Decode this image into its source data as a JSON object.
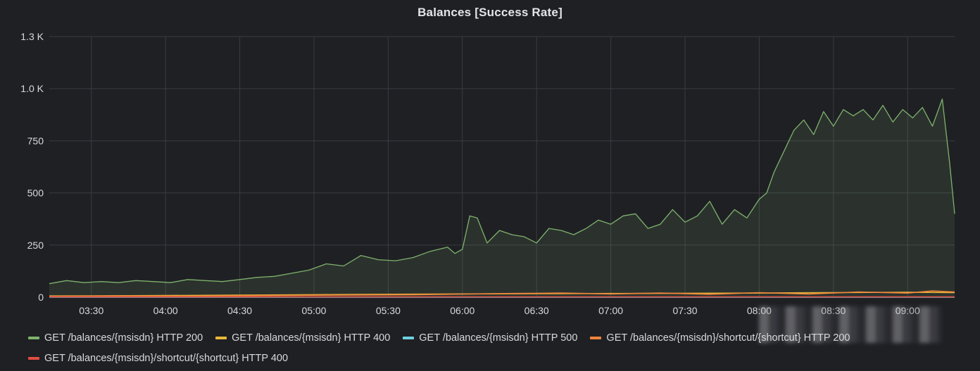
{
  "panel": {
    "title": "Balances [Success Rate]"
  },
  "colors": {
    "background": "#1f2024",
    "grid": "#3a3b40",
    "text": "#d8d9da"
  },
  "legend": {
    "items": [
      {
        "label": "GET /balances/{msisdn} HTTP 200",
        "color": "#7eb26d",
        "row": 0
      },
      {
        "label": "GET /balances/{msisdn} HTTP 400",
        "color": "#eab839",
        "row": 0
      },
      {
        "label": "GET /balances/{msisdn} HTTP 500",
        "color": "#6ed0e0",
        "row": 0
      },
      {
        "label": "GET /balances/{msisdn}/shortcut/{shortcut} HTTP 200",
        "color": "#ef843c",
        "row": 0
      },
      {
        "label": "GET /balances/{msisdn}/shortcut/{shortcut} HTTP 400",
        "color": "#e24d42",
        "row": 1
      }
    ]
  },
  "chart_data": {
    "type": "area",
    "title": "Balances [Success Rate]",
    "xlabel": "",
    "ylabel": "",
    "x_ticks": [
      "03:30",
      "04:00",
      "04:30",
      "05:00",
      "05:30",
      "06:00",
      "06:30",
      "07:00",
      "07:30",
      "08:00",
      "08:30",
      "09:00"
    ],
    "y_ticks": [
      "0",
      "250",
      "500",
      "750",
      "1.0 K",
      "1.3 K"
    ],
    "ylim": [
      0,
      1250
    ],
    "xlim": [
      "03:13",
      "09:19"
    ],
    "grid": true,
    "legend_position": "bottom",
    "series": [
      {
        "name": "GET /balances/{msisdn} HTTP 200",
        "color": "#7eb26d",
        "fill": true,
        "x": [
          "03:13",
          "03:20",
          "03:27",
          "03:34",
          "03:41",
          "03:48",
          "03:55",
          "04:02",
          "04:09",
          "04:16",
          "04:23",
          "04:30",
          "04:37",
          "04:44",
          "04:51",
          "04:58",
          "05:05",
          "05:12",
          "05:19",
          "05:26",
          "05:33",
          "05:40",
          "05:47",
          "05:54",
          "05:57",
          "06:00",
          "06:03",
          "06:06",
          "06:10",
          "06:15",
          "06:20",
          "06:25",
          "06:30",
          "06:35",
          "06:40",
          "06:45",
          "06:50",
          "06:55",
          "07:00",
          "07:05",
          "07:10",
          "07:15",
          "07:20",
          "07:25",
          "07:30",
          "07:35",
          "07:40",
          "07:45",
          "07:50",
          "07:55",
          "08:00",
          "08:03",
          "08:06",
          "08:10",
          "08:14",
          "08:18",
          "08:22",
          "08:26",
          "08:30",
          "08:34",
          "08:38",
          "08:42",
          "08:46",
          "08:50",
          "08:54",
          "08:58",
          "09:02",
          "09:06",
          "09:10",
          "09:14",
          "09:17",
          "09:19"
        ],
        "values": [
          65,
          80,
          70,
          75,
          70,
          80,
          75,
          70,
          85,
          80,
          75,
          85,
          95,
          100,
          115,
          130,
          160,
          150,
          200,
          180,
          175,
          190,
          220,
          240,
          210,
          230,
          390,
          380,
          260,
          320,
          300,
          290,
          260,
          330,
          320,
          300,
          330,
          370,
          350,
          390,
          400,
          330,
          350,
          420,
          360,
          390,
          460,
          350,
          420,
          380,
          470,
          500,
          600,
          700,
          800,
          850,
          780,
          890,
          820,
          900,
          870,
          900,
          850,
          920,
          840,
          900,
          860,
          910,
          820,
          950,
          640,
          400
        ]
      },
      {
        "name": "GET /balances/{msisdn} HTTP 400",
        "color": "#eab839",
        "fill": false,
        "x": [
          "03:13",
          "04:00",
          "05:00",
          "06:00",
          "07:00",
          "08:00",
          "09:00",
          "09:19"
        ],
        "values": [
          6,
          8,
          12,
          16,
          18,
          20,
          24,
          22
        ]
      },
      {
        "name": "GET /balances/{msisdn} HTTP 500",
        "color": "#6ed0e0",
        "fill": false,
        "x": [
          "03:13",
          "09:19"
        ],
        "values": [
          0,
          0
        ]
      },
      {
        "name": "GET /balances/{msisdn}/shortcut/{shortcut} HTTP 200",
        "color": "#ef843c",
        "fill": false,
        "x": [
          "03:13",
          "03:40",
          "04:10",
          "04:40",
          "05:10",
          "05:40",
          "06:00",
          "06:20",
          "06:40",
          "07:00",
          "07:20",
          "07:40",
          "08:00",
          "08:20",
          "08:40",
          "09:00",
          "09:10",
          "09:19"
        ],
        "values": [
          4,
          6,
          5,
          8,
          10,
          12,
          15,
          18,
          20,
          16,
          20,
          14,
          22,
          15,
          25,
          20,
          30,
          25
        ]
      },
      {
        "name": "GET /balances/{msisdn}/shortcut/{shortcut} HTTP 400",
        "color": "#e24d42",
        "fill": false,
        "x": [
          "03:13",
          "09:19"
        ],
        "values": [
          2,
          2
        ]
      }
    ]
  }
}
